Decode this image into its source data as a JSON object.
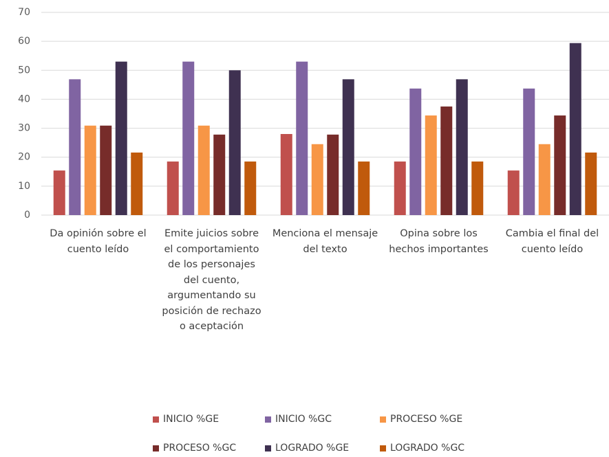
{
  "chart_data": {
    "type": "bar",
    "categories": [
      "Da opinión sobre el cuento leído",
      "Emite juicios sobre el comportamiento de los personajes del cuento, argumentando su posición de rechazo o aceptación",
      "Menciona el mensaje del texto",
      "Opina sobre los hechos importantes",
      "Cambia el final del cuento leído"
    ],
    "series": [
      {
        "name": "INICIO %GE",
        "color": "#c0504d",
        "values": [
          15.4,
          18.5,
          28,
          18.5,
          15.4
        ]
      },
      {
        "name": "INICIO %GC",
        "color": "#8064a2",
        "values": [
          46.9,
          53,
          53,
          43.7,
          43.7
        ]
      },
      {
        "name": "PROCESO %GE",
        "color": "#f79646",
        "values": [
          30.9,
          30.9,
          24.5,
          34.4,
          24.5
        ]
      },
      {
        "name": "PROCESO %GC",
        "color": "#772c2a",
        "values": [
          30.9,
          27.8,
          27.8,
          37.5,
          34.4
        ]
      },
      {
        "name": "LOGRADO %GE",
        "color": "#3f3151",
        "values": [
          53,
          50,
          46.9,
          46.9,
          59.4
        ]
      },
      {
        "name": "LOGRADO %GC",
        "color": "#c05a0c",
        "values": [
          21.6,
          18.5,
          18.5,
          18.5,
          21.6
        ]
      }
    ],
    "ylim": [
      0,
      70
    ],
    "yticks": [
      0,
      10,
      20,
      30,
      40,
      50,
      60,
      70
    ],
    "grid": true
  }
}
